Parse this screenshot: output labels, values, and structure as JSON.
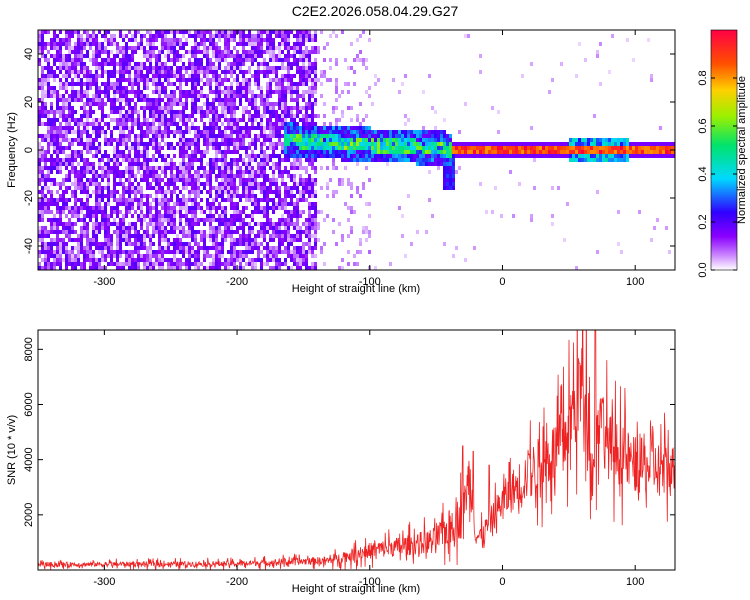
{
  "title": "C2E2.2026.058.04.29.G27",
  "chart_data": [
    {
      "type": "heatmap",
      "xlabel": "Height of straight line (km)",
      "ylabel": "Frequency (Hz)",
      "xlim": [
        -350,
        130
      ],
      "ylim": [
        -50,
        50
      ],
      "xticks": [
        -300,
        -200,
        -100,
        0,
        100
      ],
      "yticks": [
        -40,
        -20,
        0,
        20,
        40
      ],
      "colorbar": {
        "label": "Normalized spectral amplitude",
        "range": [
          0,
          1
        ],
        "ticks": [
          "0.0",
          "0.2",
          "0.4",
          "0.6",
          "0.8"
        ],
        "colormap": [
          "#ffffff",
          "#8a00ff",
          "#2f00ff",
          "#00d9ff",
          "#00e36b",
          "#9bf000",
          "#ffd000",
          "#ff4f00",
          "#ff0044"
        ]
      },
      "regions": [
        {
          "x": [
            -350,
            -140
          ],
          "level": 0.1
        },
        {
          "x": [
            -165,
            -40
          ],
          "y_center": 3,
          "level": 0.35
        },
        {
          "x": [
            -40,
            130
          ],
          "y_center": 1,
          "level": 0.9
        }
      ]
    },
    {
      "type": "line",
      "xlabel": "Height of straight line (km)",
      "ylabel": "SNR (10 * v/v)",
      "xlim": [
        -350,
        130
      ],
      "ylim": [
        0,
        8700
      ],
      "xticks": [
        -300,
        -200,
        -100,
        0,
        100
      ],
      "yticks": [
        2000,
        4000,
        6000,
        8000
      ],
      "color": "#ee2222",
      "envelope": [
        [
          -350,
          200
        ],
        [
          -200,
          230
        ],
        [
          -130,
          350
        ],
        [
          -100,
          700
        ],
        [
          -70,
          900
        ],
        [
          -50,
          1100
        ],
        [
          -30,
          2000
        ],
        [
          -25,
          3500
        ],
        [
          -20,
          1200
        ],
        [
          -15,
          1300
        ],
        [
          0,
          2500
        ],
        [
          20,
          3500
        ],
        [
          45,
          4500
        ],
        [
          58,
          6500
        ],
        [
          63,
          6800
        ],
        [
          68,
          3300
        ],
        [
          72,
          6000
        ],
        [
          80,
          4500
        ],
        [
          100,
          3800
        ],
        [
          130,
          3600
        ]
      ],
      "spikes": [
        [
          -30,
          4500
        ],
        [
          -22,
          4300
        ],
        [
          -10,
          3800
        ],
        [
          5,
          3900
        ],
        [
          20,
          4200
        ],
        [
          58,
          7500
        ],
        [
          70,
          8700
        ],
        [
          75,
          6200
        ]
      ]
    }
  ]
}
